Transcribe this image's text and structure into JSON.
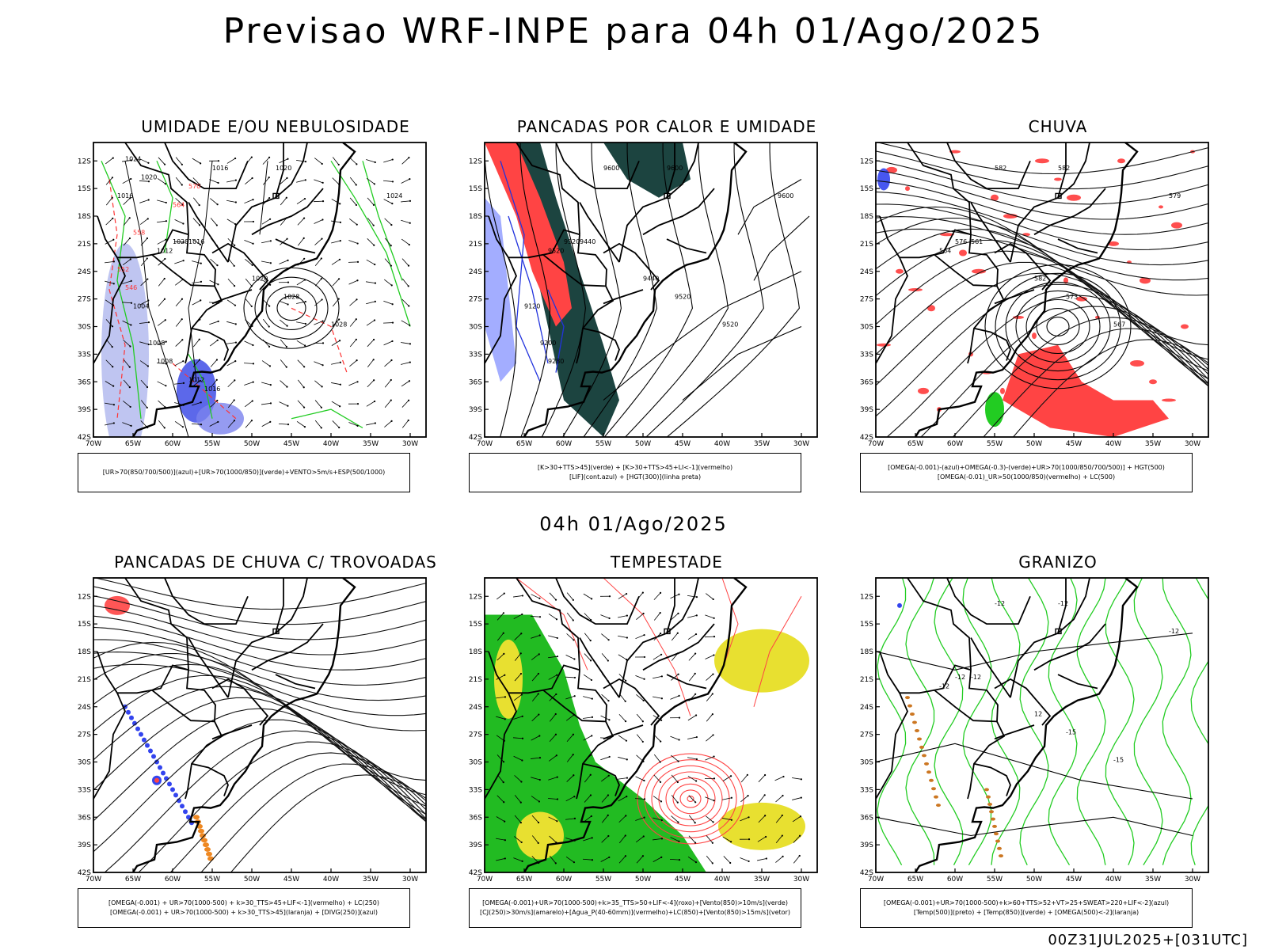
{
  "main_title": "Previsao WRF-INPE  para 04h 01/Ago/2025",
  "mid_title": "04h 01/Ago/2025",
  "footer": "00Z31JUL2025+[031UTC]",
  "axes": {
    "lat_ticks": [
      "12S",
      "15S",
      "18S",
      "21S",
      "24S",
      "27S",
      "30S",
      "33S",
      "36S",
      "39S",
      "42S"
    ],
    "lon_ticks": [
      "70W",
      "65W",
      "60W",
      "55W",
      "50W",
      "45W",
      "40W",
      "35W",
      "30W"
    ]
  },
  "panels": [
    {
      "title": "UMIDADE E/OU NEBULOSIDADE",
      "legend": [
        "[UR>70(850/700/500)](azul)+[UR>70(1000/850)](verde)+VENTO>5m/s+ESP(500/1000)"
      ],
      "contour_labels": [
        "1016",
        "1020",
        "1024",
        "1028",
        "1028",
        "1028",
        "1012",
        "1016",
        "1020",
        "1008",
        "1004",
        "1008",
        "1012",
        "1016",
        "1020",
        "1024",
        "1016",
        "570",
        "564",
        "558",
        "552",
        "546"
      ]
    },
    {
      "title": "PANCADAS POR CALOR E UMIDADE",
      "legend": [
        "[K>30+TTS>45](verde) + [K>30+TTS>45+LI<-1](vermelho)",
        "[LIF](cont.azul) + [HGT(300)](linha preta)"
      ],
      "contour_labels": [
        "9600",
        "9600",
        "9600",
        "9520",
        "9520",
        "9520",
        "9520",
        "9440",
        "9440",
        "9200",
        "9120",
        "9280"
      ]
    },
    {
      "title": "CHUVA",
      "legend": [
        "[OMEGA(-0.001)-(azul)+OMEGA(-0.3)-(verde)+UR>70(1000/850/700/500)] + HGT(500)",
        "[OMEGA(-0.01)_UR>50(1000/850)(vermelho) + LC(500)"
      ],
      "contour_labels": [
        "582",
        "582",
        "579",
        "576",
        "573",
        "567",
        "564",
        "561",
        "582"
      ]
    },
    {
      "title": "PANCADAS DE CHUVA C/ TROVOADAS",
      "legend": [
        "[OMEGA(-0.001) + UR>70(1000-500) + k>30_TTS>45+LIF<-1](vermelho) + LC(250)",
        "[OMEGA(-0.001) + UR>70(1000-500) + k>30_TTS>45](laranja) + [DIVG(250)](azul)"
      ],
      "contour_labels": []
    },
    {
      "title": "TEMPESTADE",
      "legend": [
        "[OMEGA(-0.001)+UR>70(1000-500)+k>35_TTS>50+LIF<-4](roxo)+[Vento(850)>10m/s](verde)",
        "[CJ(250)>30m/s](amarelo)+[Agua_P(40-60mm)](vermelho)+LC(850)+[Vento(850)>15m/s](vetor)"
      ],
      "contour_labels": []
    },
    {
      "title": "GRANIZO",
      "legend": [
        "[OMEGA(-0.001)+UR>70(1000-500)+k>60+TTS>52+VT>25+SWEAT>220+LIF<-2](azul)",
        "[Temp(500)](preto) + [Temp(850)](verde) + [OMEGA(500)<-2](laranja)"
      ],
      "contour_labels": [
        "-12",
        "-12",
        "-12",
        "-12",
        "-15",
        "-15",
        "-12",
        "-12",
        "12"
      ]
    }
  ]
}
